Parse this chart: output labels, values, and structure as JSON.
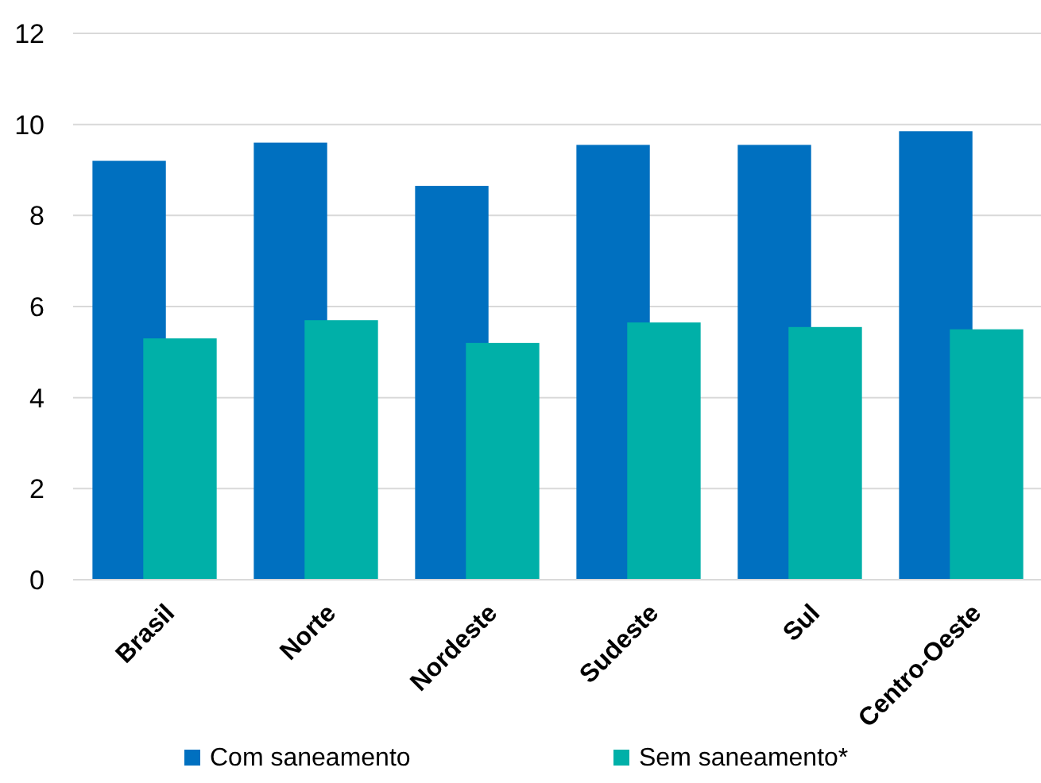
{
  "chart_data": {
    "type": "bar",
    "categories": [
      "Brasil",
      "Norte",
      "Nordeste",
      "Sudeste",
      "Sul",
      "Centro-Oeste"
    ],
    "series": [
      {
        "name": "Com saneamento",
        "color": "#0070c0",
        "values": [
          9.2,
          9.6,
          8.65,
          9.55,
          9.55,
          9.85
        ]
      },
      {
        "name": "Sem saneamento*",
        "color": "#00b0a8",
        "values": [
          5.3,
          5.7,
          5.2,
          5.65,
          5.55,
          5.5
        ]
      }
    ],
    "ylim": [
      0,
      12
    ],
    "yticks": [
      0,
      2,
      4,
      6,
      8,
      10,
      12
    ],
    "grid": "y",
    "legend": "bottom"
  }
}
